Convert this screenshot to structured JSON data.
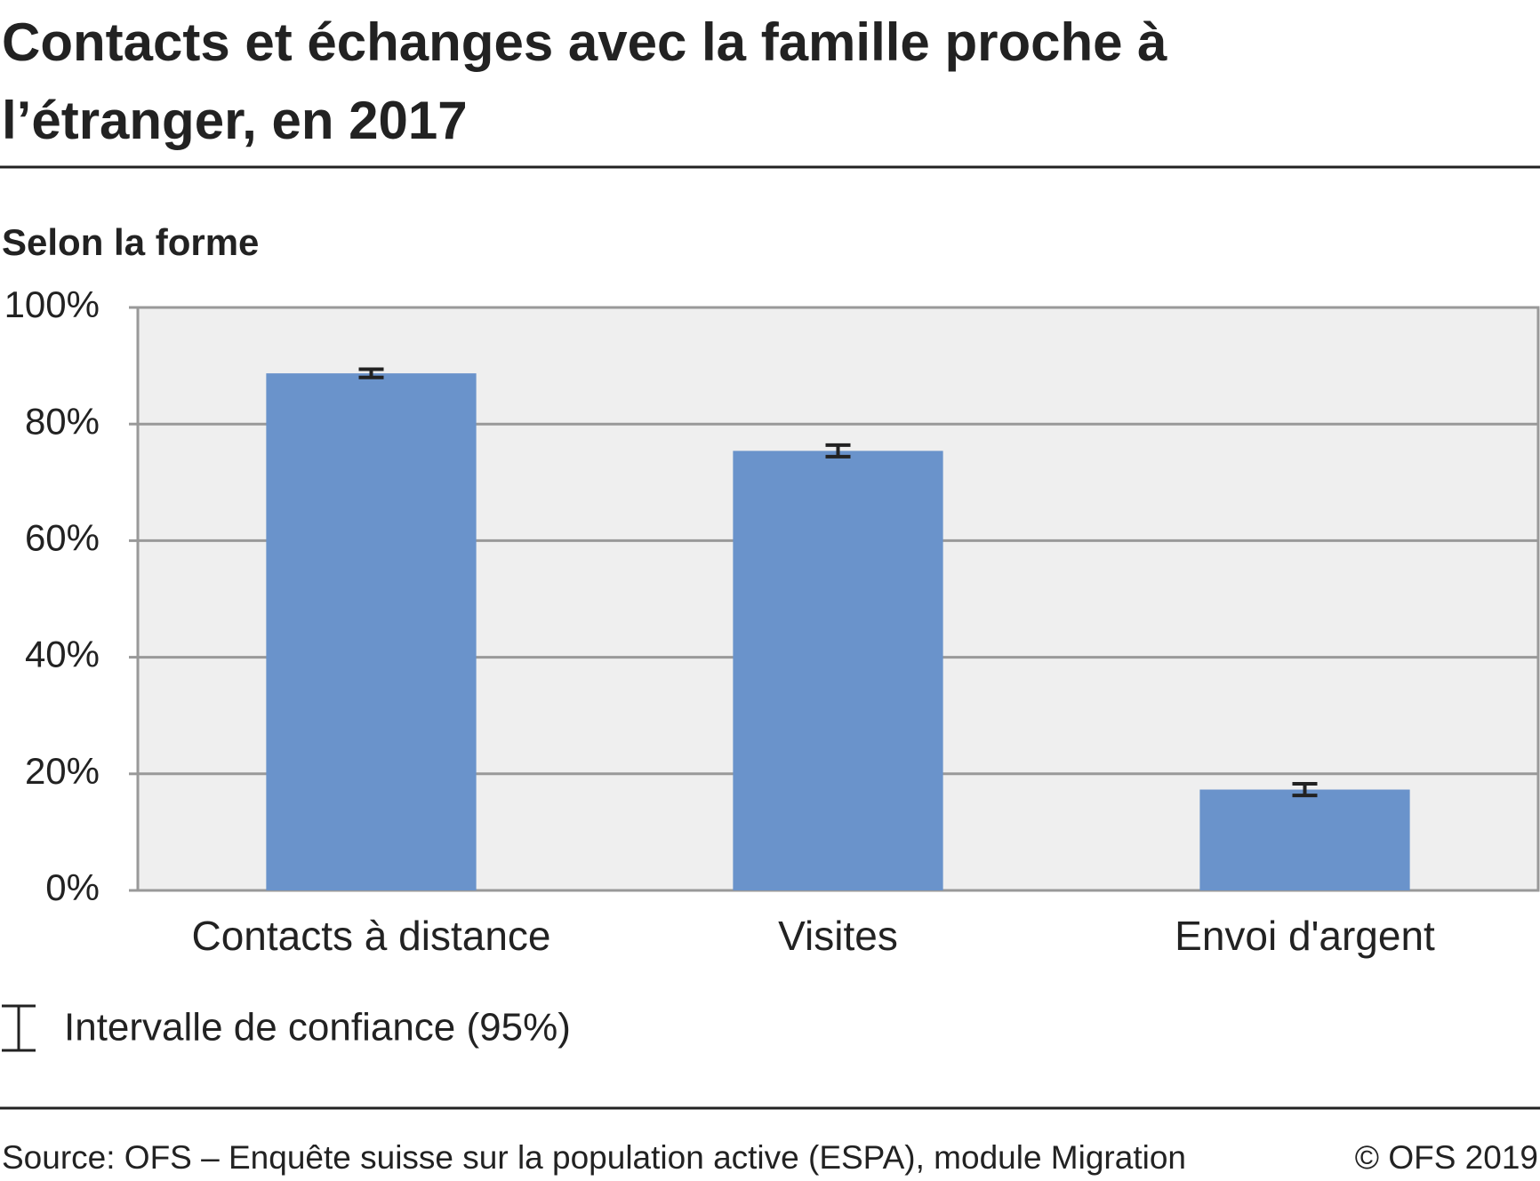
{
  "chart_data": {
    "type": "bar",
    "title": "Contacts et échanges avec la famille proche à l’étranger, en 2017",
    "subtitle": "Selon la forme",
    "categories": [
      "Contacts à distance",
      "Visites",
      "Envoi d'argent"
    ],
    "values": [
      88.7,
      75.4,
      17.3
    ],
    "errors": [
      0.7,
      1.0,
      1.0
    ],
    "color": "#6a93cb",
    "ylim": [
      0,
      100
    ],
    "yticks": [
      {
        "value": 0,
        "label": "0%"
      },
      {
        "value": 20,
        "label": "20%"
      },
      {
        "value": 40,
        "label": "40%"
      },
      {
        "value": 60,
        "label": "60%"
      },
      {
        "value": 80,
        "label": "80%"
      },
      {
        "value": 100,
        "label": "100%"
      }
    ],
    "grid": true,
    "legend": "Intervalle de confiance (95%)",
    "source": "Source: OFS – Enquête suisse sur la population active (ESPA), module Migration",
    "copyright": "© OFS 2019"
  }
}
